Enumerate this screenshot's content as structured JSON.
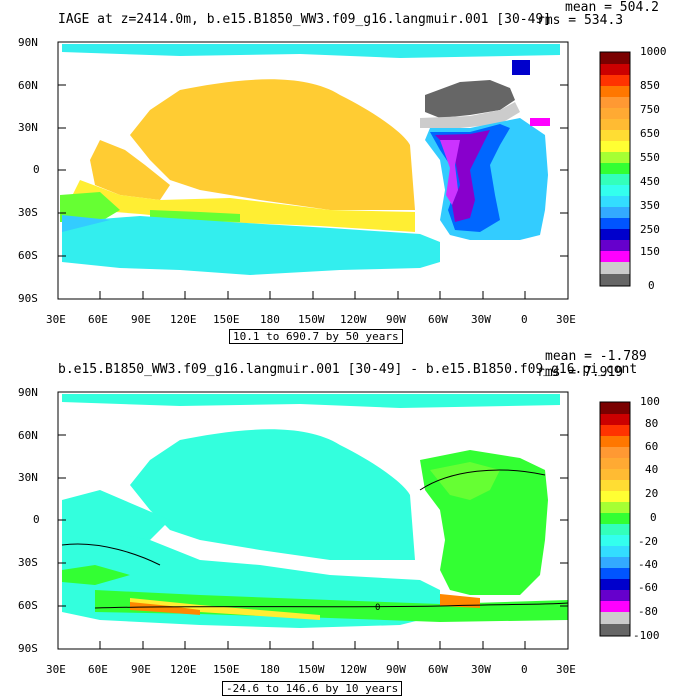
{
  "panels": [
    {
      "title": "IAGE at z=2414.0m, b.e15.B1850_WW3.f09_g16.langmuir.001  [30-49]",
      "mean": "mean = 504.2",
      "rms": "rms = 534.3",
      "caption": "10.1 to 690.7 by 50 years",
      "colorbar_labels": [
        "1000",
        "850",
        "750",
        "650",
        "550",
        "450",
        "350",
        "250",
        "150",
        "0"
      ],
      "colorbar_colors": [
        "#7a0000",
        "#cc0000",
        "#ff3300",
        "#ff7700",
        "#ff9933",
        "#ffbb33",
        "#ffdd33",
        "#ffff33",
        "#a6ff33",
        "#33ff33",
        "#33ffbb",
        "#33ffee",
        "#33ddff",
        "#33aaff",
        "#0055ff",
        "#0000cc",
        "#6600cc",
        "#9900ff",
        "#ff00ff",
        "#cccccc",
        "#666666"
      ]
    },
    {
      "title": "b.e15.B1850_WW3.f09_g16.langmuir.001 [30-49] - b.e15.B1850.f09_g16.pi_cont",
      "mean": "mean = -1.789",
      "rms": "rms = 7.919",
      "caption": "-24.6 to 146.6 by 10 years",
      "colorbar_labels": [
        "100",
        "80",
        "60",
        "40",
        "20",
        "0",
        "-20",
        "-40",
        "-60",
        "-80",
        "-100"
      ],
      "colorbar_colors": [
        "#7a0000",
        "#cc0000",
        "#ff3300",
        "#ff7700",
        "#ff9933",
        "#ffbb33",
        "#ffdd33",
        "#ffff33",
        "#a6ff33",
        "#33ff33",
        "#33ffbb",
        "#33ffee",
        "#33ddff",
        "#33aaff",
        "#0055ff",
        "#0000cc",
        "#6600cc",
        "#9900ff",
        "#ff00ff",
        "#cccccc",
        "#666666"
      ],
      "contour_label": "0"
    }
  ],
  "lat_labels": [
    "90N",
    "60N",
    "30N",
    "0",
    "30S",
    "60S",
    "90S"
  ],
  "lon_labels": [
    "30E",
    "60E",
    "90E",
    "120E",
    "150E",
    "180",
    "150W",
    "120W",
    "90W",
    "60W",
    "30W",
    "0",
    "30E"
  ],
  "map_colors": {
    "pacific_age": "#ffcc33",
    "southern": "#33eeee",
    "indian_green": "#66ff33",
    "atlantic_cyan": "#33ccff",
    "atlantic_blue": "#0033ff",
    "atlantic_purple": "#8800cc",
    "arctic_grey": "#666666",
    "light_grey": "#cccccc",
    "diff_cyan": "#33ffdd",
    "diff_green": "#33ff33",
    "diff_orange": "#ff8800",
    "diff_yellow": "#ffee33",
    "land": "#ffffff"
  }
}
